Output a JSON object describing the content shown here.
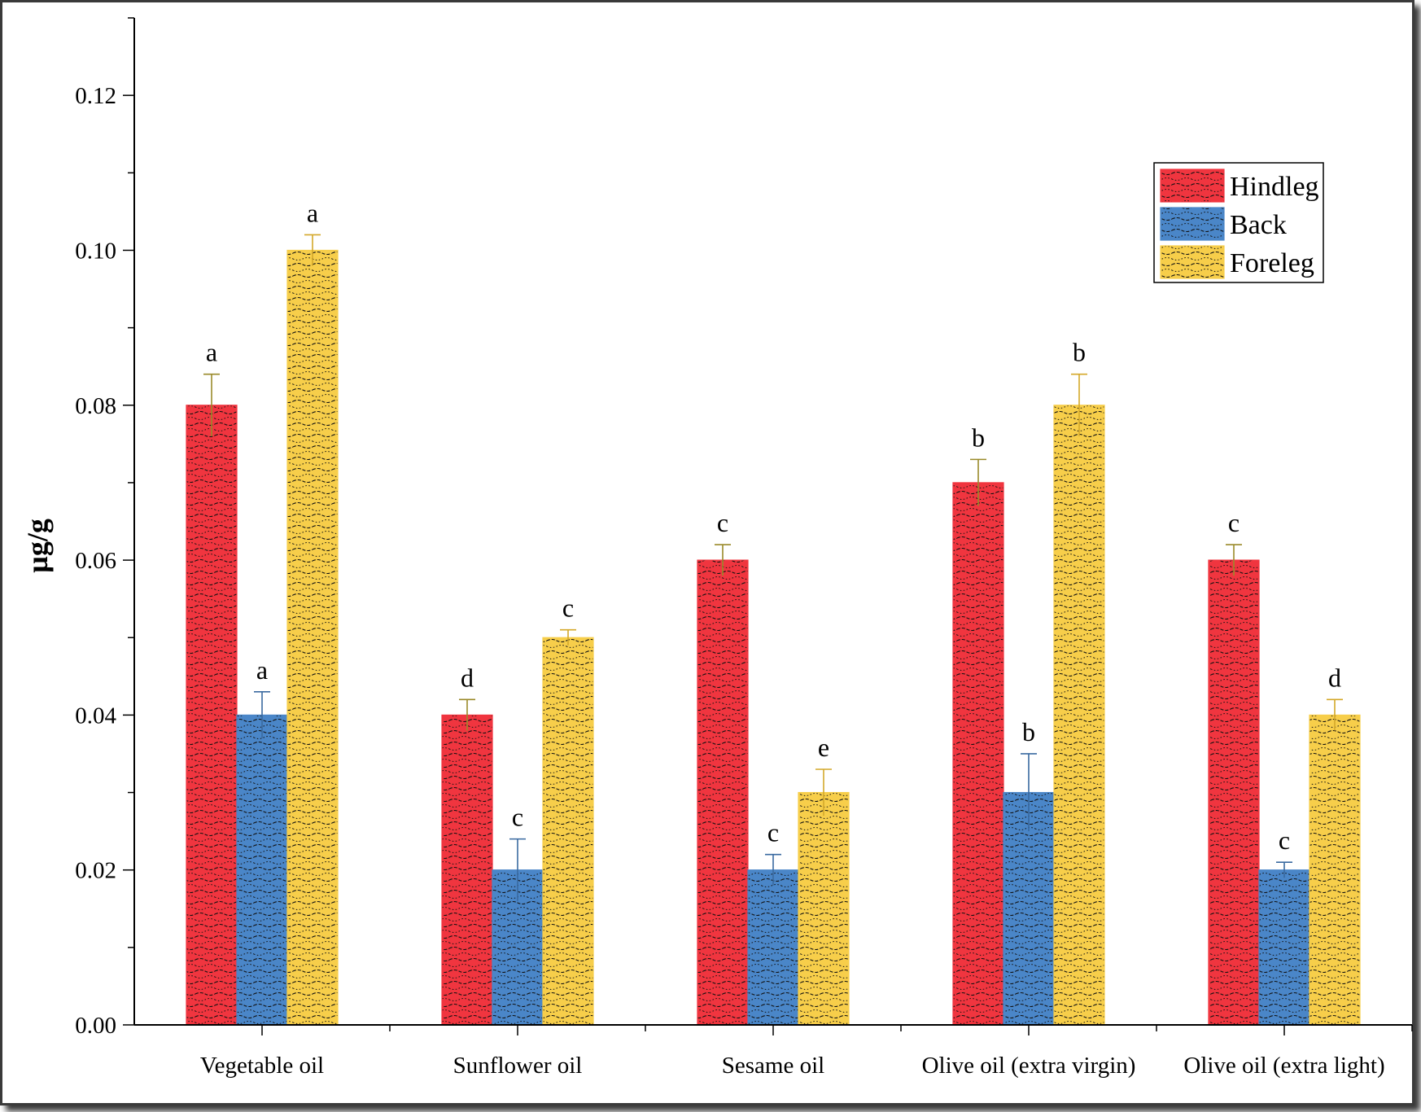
{
  "chart_data": {
    "type": "bar",
    "title": "",
    "xlabel": "",
    "ylabel": "µg/g",
    "ylim": [
      0,
      0.13
    ],
    "yticks": [
      "0.00",
      "0.02",
      "0.04",
      "0.06",
      "0.08",
      "0.10",
      "0.12"
    ],
    "categories": [
      "Vegetable oil",
      "Sunflower oil",
      "Sesame oil",
      "Olive oil (extra virgin)",
      "Olive oil (extra light)"
    ],
    "series": [
      {
        "name": "Hindleg",
        "color": "#f0353f",
        "values": [
          0.08,
          0.04,
          0.06,
          0.07,
          0.06
        ],
        "errors": [
          0.004,
          0.002,
          0.002,
          0.003,
          0.002
        ],
        "letters": [
          "a",
          "d",
          "c",
          "b",
          "c"
        ]
      },
      {
        "name": "Back",
        "color": "#4a86c8",
        "values": [
          0.04,
          0.02,
          0.02,
          0.03,
          0.02
        ],
        "errors": [
          0.003,
          0.004,
          0.002,
          0.005,
          0.001
        ],
        "letters": [
          "a",
          "c",
          "c",
          "b",
          "c"
        ]
      },
      {
        "name": "Foreleg",
        "color": "#f7ce4a",
        "values": [
          0.1,
          0.05,
          0.03,
          0.08,
          0.04
        ],
        "errors": [
          0.002,
          0.001,
          0.003,
          0.004,
          0.002
        ],
        "letters": [
          "a",
          "c",
          "e",
          "b",
          "d"
        ]
      }
    ],
    "grid": false,
    "legend": "top-right",
    "pattern": "dotted-dashed hatch"
  }
}
